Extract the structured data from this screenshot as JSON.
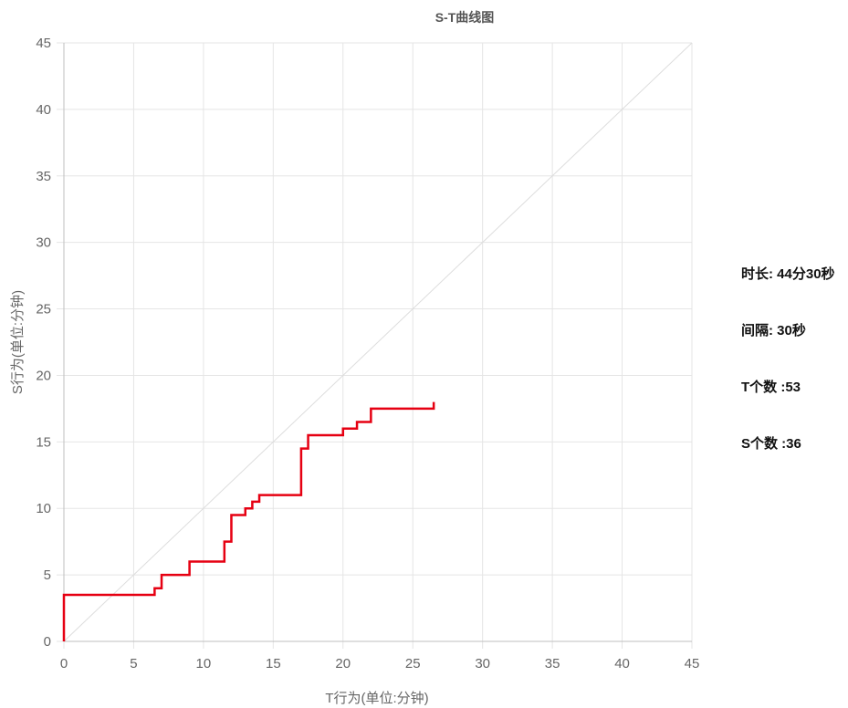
{
  "chart_data": {
    "type": "line",
    "title": "S-T曲线图",
    "xlabel": "T行为(单位:分钟)",
    "ylabel": "S行为(单位:分钟)",
    "xlim": [
      0,
      45
    ],
    "ylim": [
      0,
      45
    ],
    "xticks": [
      0,
      5,
      10,
      15,
      20,
      25,
      30,
      35,
      40,
      45
    ],
    "yticks": [
      0,
      5,
      10,
      15,
      20,
      25,
      30,
      35,
      40,
      45
    ],
    "grid": true,
    "series": [
      {
        "color": "#e60012",
        "step": "horizontal-first",
        "x": [
          0,
          0,
          6.5,
          7,
          9,
          11.5,
          12,
          13,
          13.5,
          14,
          17,
          17.5,
          20,
          21,
          22,
          26.5
        ],
        "y": [
          0,
          3.5,
          4,
          5,
          6,
          7.5,
          9.5,
          10,
          10.5,
          11,
          14.5,
          15.5,
          16,
          16.5,
          17.5,
          18
        ]
      },
      {
        "color": "#dddddd",
        "x": [
          0,
          45
        ],
        "y": [
          0,
          45
        ]
      }
    ]
  },
  "stats": {
    "duration": "时长: 44分30秒",
    "interval": "间隔: 30秒",
    "t_count": "T个数 :53",
    "s_count": "S个数 :36"
  }
}
